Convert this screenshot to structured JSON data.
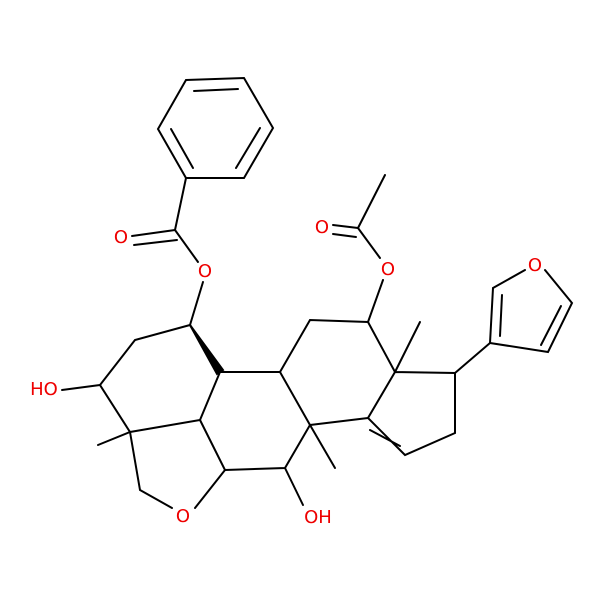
{
  "labels": {
    "benzoyl_carbonyl_o": "O",
    "benzoyl_ester_o": "O",
    "acetyl_carbonyl_o": "O",
    "acetyl_ester_o": "O",
    "furan_o": "O",
    "ring_ether_o": "O",
    "hydroxyl_left": "HO",
    "hydroxyl_bottom": "OH"
  }
}
